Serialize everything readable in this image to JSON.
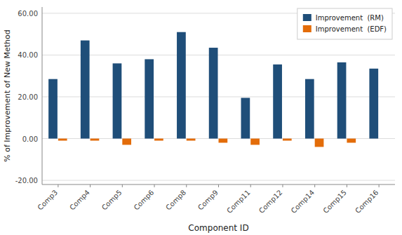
{
  "chart_data": {
    "type": "bar",
    "categories": [
      "Comp3",
      "Comp4",
      "Comp5",
      "Comp6",
      "Comp8",
      "Comp9",
      "Comp11",
      "Comp12",
      "Comp14",
      "Comp15",
      "Comp16"
    ],
    "series": [
      {
        "name": "Improvement  (RM)",
        "color": "#1F4E79",
        "values": [
          28.5,
          47.0,
          36.0,
          38.0,
          51.0,
          43.5,
          19.5,
          35.5,
          28.5,
          36.5,
          33.5
        ]
      },
      {
        "name": "Improvement  (EDF)",
        "color": "#E36C09",
        "values": [
          -1.0,
          -1.0,
          -3.0,
          -1.0,
          -1.0,
          -2.0,
          -3.0,
          -1.0,
          -4.0,
          -2.0,
          0.0
        ]
      }
    ],
    "xlabel": "Component ID",
    "ylabel": "% of Improvement of New Method",
    "ylim": [
      -22,
      63
    ],
    "yticks": [
      {
        "value": -20.0,
        "label": "-20.00"
      },
      {
        "value": 0.0,
        "label": "0.00"
      },
      {
        "value": 20.0,
        "label": "20.00"
      },
      {
        "value": 40.0,
        "label": "40.00"
      },
      {
        "value": 60.0,
        "label": "60.00"
      }
    ],
    "grid": true,
    "legend": "upper right"
  }
}
